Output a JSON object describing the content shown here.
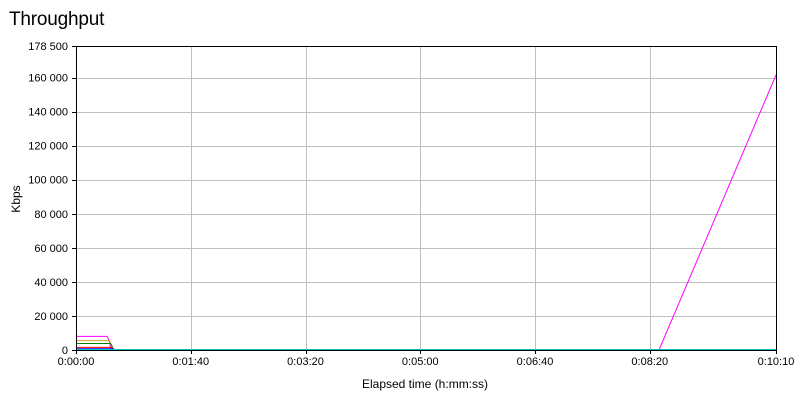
{
  "chart_data": {
    "type": "line",
    "title": "Throughput",
    "xlabel": "Elapsed time (h:mm:ss)",
    "ylabel": "Kbps",
    "xlim": [
      0,
      610
    ],
    "ylim": [
      0,
      178500
    ],
    "x_ticks": [
      {
        "value": 0,
        "label": "0:00:00"
      },
      {
        "value": 100,
        "label": "0:01:40"
      },
      {
        "value": 200,
        "label": "0:03:20"
      },
      {
        "value": 300,
        "label": "0:05:00"
      },
      {
        "value": 400,
        "label": "0:06:40"
      },
      {
        "value": 500,
        "label": "0:08:20"
      },
      {
        "value": 610,
        "label": "0:10:10"
      }
    ],
    "y_ticks": [
      {
        "value": 0,
        "label": "0"
      },
      {
        "value": 20000,
        "label": "20 000"
      },
      {
        "value": 40000,
        "label": "40 000"
      },
      {
        "value": 60000,
        "label": "60 000"
      },
      {
        "value": 80000,
        "label": "80 000"
      },
      {
        "value": 100000,
        "label": "100 000"
      },
      {
        "value": 120000,
        "label": "120 000"
      },
      {
        "value": 140000,
        "label": "140 000"
      },
      {
        "value": 160000,
        "label": "160 000"
      },
      {
        "value": 178500,
        "label": "178 500"
      }
    ],
    "grid": true,
    "series": [
      {
        "color": "#ff00ff",
        "x": [
          0,
          27,
          28,
          29,
          30,
          31,
          500,
          508,
          610
        ],
        "y": [
          8000,
          8000,
          7000,
          5000,
          2000,
          0,
          0,
          0,
          161500
        ]
      },
      {
        "color": "#c9a227",
        "x": [
          0,
          29,
          30,
          31,
          32,
          610
        ],
        "y": [
          5500,
          5500,
          4500,
          1500,
          0,
          0
        ]
      },
      {
        "color": "#008000",
        "x": [
          0,
          30,
          31,
          32,
          33,
          610
        ],
        "y": [
          3800,
          3800,
          3000,
          1000,
          0,
          0
        ]
      },
      {
        "color": "#ff0000",
        "x": [
          0,
          31,
          32,
          33,
          34,
          610
        ],
        "y": [
          1500,
          1500,
          1200,
          500,
          0,
          0
        ]
      },
      {
        "color": "#0000ff",
        "x": [
          0,
          32,
          33,
          34,
          610
        ],
        "y": [
          700,
          700,
          400,
          0,
          0
        ]
      },
      {
        "color": "#00c8c8",
        "x": [
          0,
          610
        ],
        "y": [
          300,
          300
        ]
      }
    ]
  }
}
